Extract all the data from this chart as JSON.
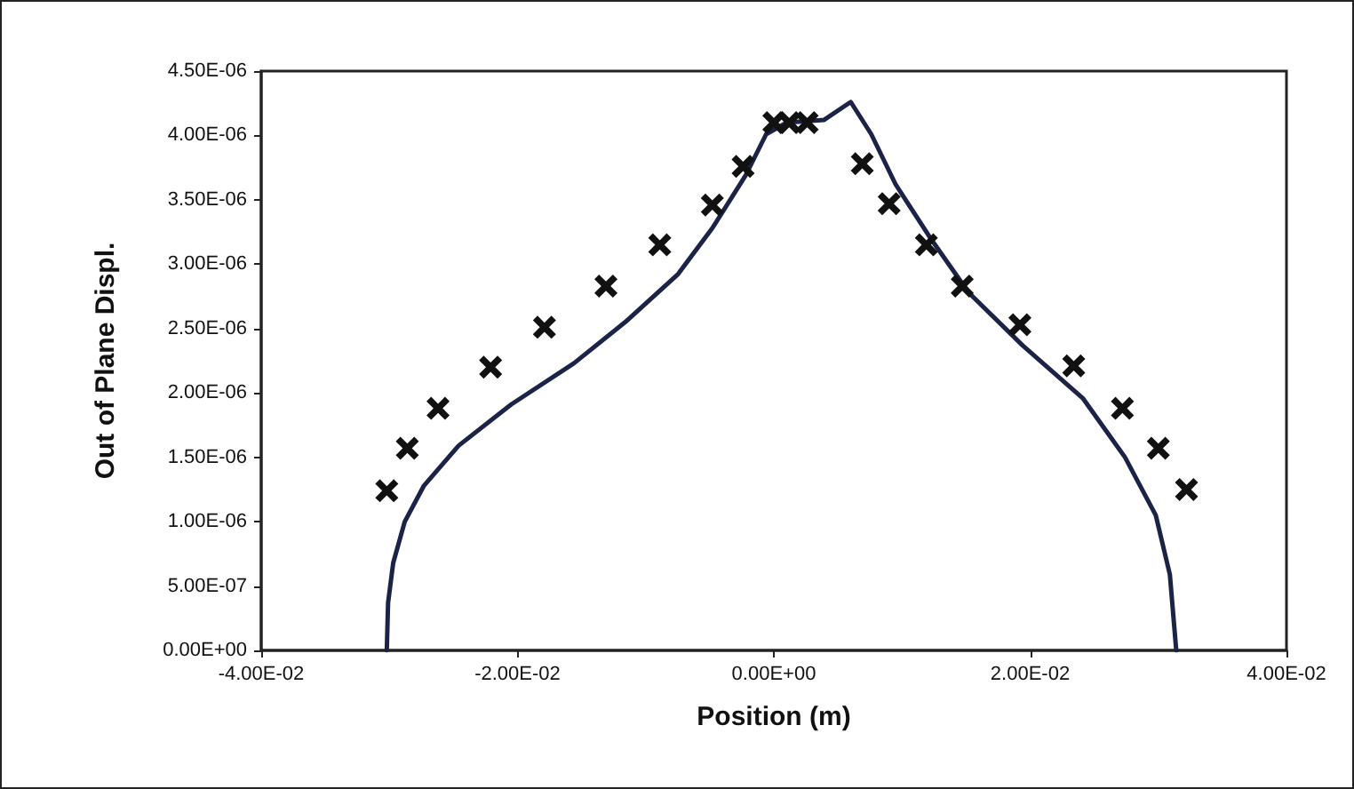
{
  "chart_data": {
    "type": "scatter",
    "xlabel": "Position (m)",
    "ylabel": "Out of Plane Displ.",
    "xlim": [
      -0.04,
      0.04
    ],
    "xticks": [
      {
        "value": -0.04,
        "label": "-4.00E-02"
      },
      {
        "value": -0.02,
        "label": "-2.00E-02"
      },
      {
        "value": 0,
        "label": "0.00E+00"
      },
      {
        "value": 0.02,
        "label": "2.00E-02"
      },
      {
        "value": 0.04,
        "label": "4.00E-02"
      }
    ],
    "ylim": [
      0,
      4.5e-06
    ],
    "yticks": [
      {
        "value": 0,
        "label": "0.00E+00"
      },
      {
        "value": 5e-07,
        "label": "5.00E-07"
      },
      {
        "value": 1e-06,
        "label": "1.00E-06"
      },
      {
        "value": 1.5e-06,
        "label": "1.50E-06"
      },
      {
        "value": 2e-06,
        "label": "2.00E-06"
      },
      {
        "value": 2.5e-06,
        "label": "2.50E-06"
      },
      {
        "value": 3e-06,
        "label": "3.00E-06"
      },
      {
        "value": 3.5e-06,
        "label": "3.50E-06"
      },
      {
        "value": 4e-06,
        "label": "4.00E-06"
      },
      {
        "value": 4.5e-06,
        "label": "4.50E-06"
      }
    ],
    "grid": false,
    "series": [
      {
        "type": "line",
        "color": "#1b2347",
        "marker": "none",
        "line_style": "solid",
        "x": [
          -0.0302,
          -0.0301,
          -0.0297,
          -0.0288,
          -0.0273,
          -0.0246,
          -0.0205,
          -0.0156,
          -0.0116,
          -0.0075,
          -0.0048,
          -0.0022,
          -0.0006,
          0.001,
          0.0039,
          0.006,
          0.0076,
          0.0095,
          0.0123,
          0.0152,
          0.0194,
          0.0241,
          0.0274,
          0.0298,
          0.0309,
          0.0314
        ],
        "values": [
          0,
          3.7e-07,
          6.8e-07,
          1e-06,
          1.28e-06,
          1.59e-06,
          1.91e-06,
          2.23e-06,
          2.55e-06,
          2.92e-06,
          3.28e-06,
          3.69e-06,
          4.01e-06,
          4.1e-06,
          4.12e-06,
          4.26e-06,
          4.01e-06,
          3.62e-06,
          3.19e-06,
          2.78e-06,
          2.37e-06,
          1.96e-06,
          1.5e-06,
          1.05e-06,
          5.9e-07,
          0
        ]
      },
      {
        "type": "scatter",
        "color": "#111111",
        "marker": "cross",
        "x": [
          -0.0302,
          -0.0286,
          -0.0262,
          -0.0221,
          -0.0179,
          -0.0131,
          -0.0089,
          -0.0048,
          -0.0024,
          0.0,
          0.0012,
          0.0026,
          0.0069,
          0.009,
          0.0119,
          0.0147,
          0.0192,
          0.0234,
          0.0272,
          0.03,
          0.0322
        ],
        "values": [
          1.24e-06,
          1.57e-06,
          1.88e-06,
          2.2e-06,
          2.51e-06,
          2.83e-06,
          3.15e-06,
          3.46e-06,
          3.76e-06,
          4.1e-06,
          4.1e-06,
          4.1e-06,
          3.78e-06,
          3.47e-06,
          3.15e-06,
          2.83e-06,
          2.53e-06,
          2.21e-06,
          1.88e-06,
          1.57e-06,
          1.25e-06
        ]
      }
    ]
  }
}
